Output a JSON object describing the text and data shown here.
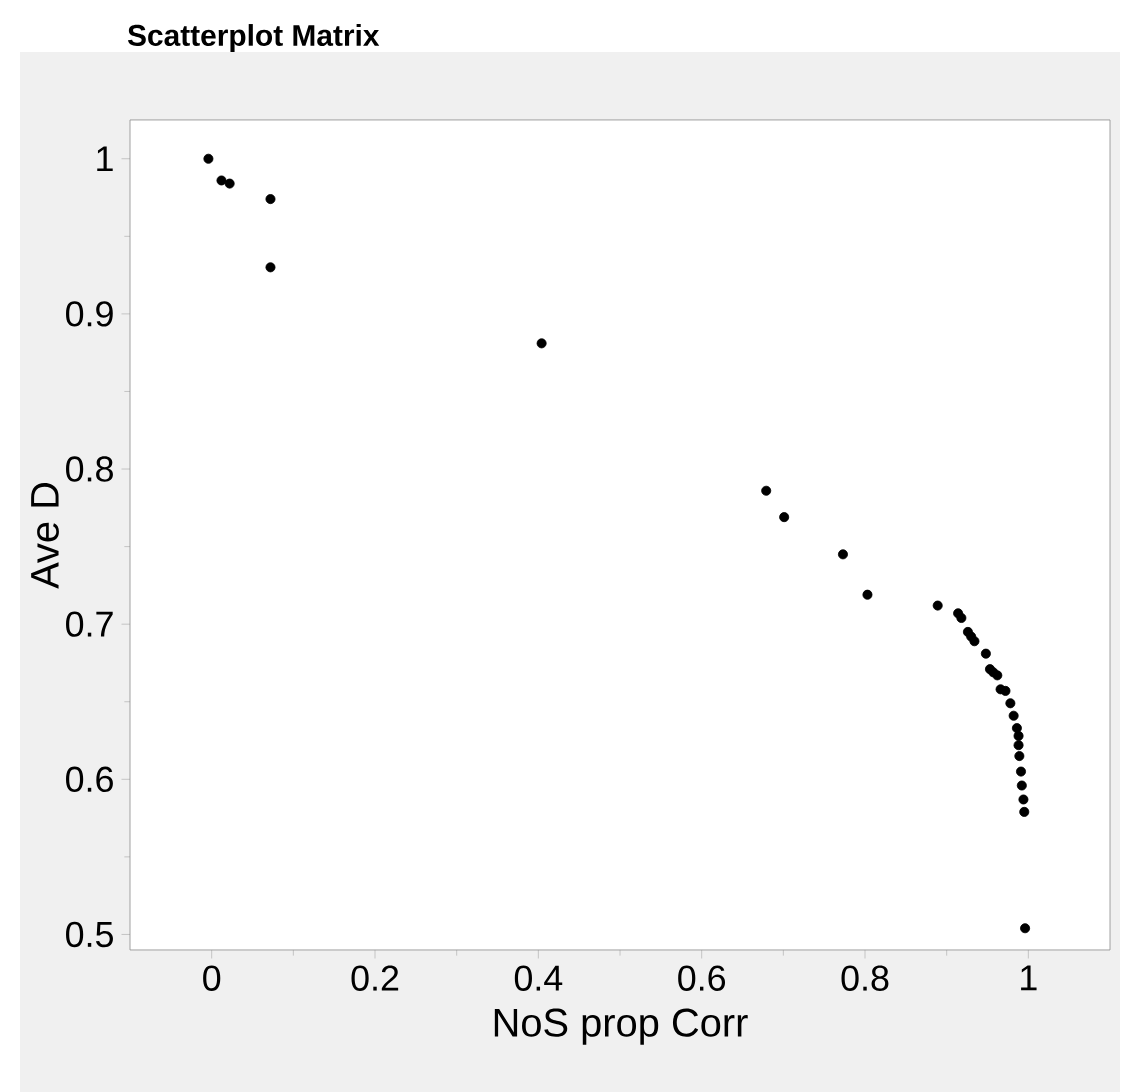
{
  "chart_data": {
    "type": "scatter",
    "title": "Scatterplot Matrix",
    "xlabel": "NoS prop Corr",
    "ylabel": "Ave D",
    "xlim": [
      -0.1,
      1.1
    ],
    "ylim": [
      0.49,
      1.025
    ],
    "xticks": [
      0,
      0.2,
      0.4,
      0.6,
      0.8,
      1
    ],
    "yticks": [
      0.5,
      0.6,
      0.7,
      0.8,
      0.9,
      1
    ],
    "grid": false,
    "marker": "circle",
    "series": [
      {
        "color": "#000000",
        "x": [
          -0.004,
          0.012,
          0.022,
          0.072,
          0.072,
          0.404,
          0.679,
          0.701,
          0.773,
          0.803,
          0.889,
          0.914,
          0.918,
          0.926,
          0.93,
          0.934,
          0.948,
          0.953,
          0.957,
          0.962,
          0.966,
          0.972,
          0.978,
          0.982,
          0.986,
          0.988,
          0.988,
          0.989,
          0.991,
          0.992,
          0.994,
          0.995,
          0.996
        ],
        "values": [
          1.0,
          0.986,
          0.984,
          0.974,
          0.93,
          0.881,
          0.786,
          0.769,
          0.745,
          0.719,
          0.712,
          0.707,
          0.704,
          0.695,
          0.692,
          0.689,
          0.681,
          0.671,
          0.669,
          0.667,
          0.658,
          0.657,
          0.649,
          0.641,
          0.633,
          0.628,
          0.622,
          0.615,
          0.605,
          0.596,
          0.587,
          0.579,
          0.504
        ]
      }
    ]
  }
}
